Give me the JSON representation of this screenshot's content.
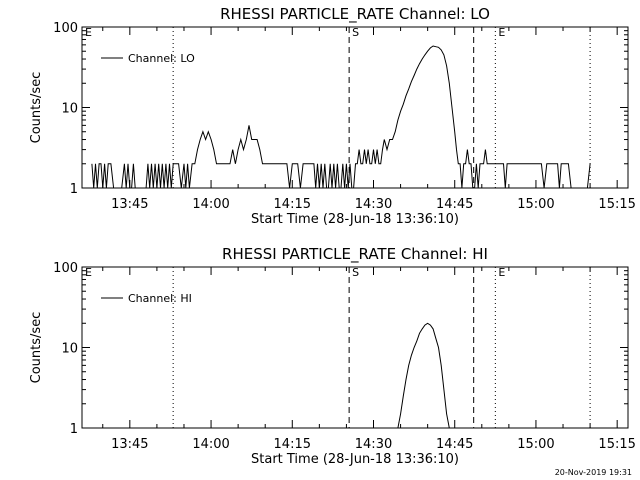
{
  "footer_timestamp": "20-Nov-2019 19:31",
  "chart_data": [
    {
      "type": "line",
      "title": "RHESSI PARTICLE_RATE Channel: LO",
      "xlabel": "Start Time (28-Jun-18 13:36:10)",
      "ylabel": "Counts/sec",
      "y_scale": "log",
      "ylim": [
        1,
        100
      ],
      "xlim": [
        "13:36:10",
        "15:17:00"
      ],
      "y_ticks": [
        "1",
        "10",
        "100"
      ],
      "x_ticks": [
        "13:45",
        "14:00",
        "14:15",
        "14:30",
        "14:45",
        "15:00",
        "15:15"
      ],
      "legend": {
        "position": "top-left",
        "label": "Channel: LO"
      },
      "markers": [
        {
          "label": "E",
          "time": "13:36:10",
          "style": "dotted"
        },
        {
          "label": "",
          "time": "13:53:00",
          "style": "dotted"
        },
        {
          "label": "S",
          "time": "14:25:30",
          "style": "dashed"
        },
        {
          "label": "",
          "time": "14:48:30",
          "style": "dashed"
        },
        {
          "label": "E",
          "time": "14:52:30",
          "style": "dotted"
        },
        {
          "label": "",
          "time": "15:10:00",
          "style": "dotted"
        }
      ],
      "series": [
        {
          "name": "Channel: LO",
          "points": [
            [
              "13:38:00",
              2
            ],
            [
              "13:38:20",
              1
            ],
            [
              "13:38:40",
              2
            ],
            [
              "13:39:00",
              1
            ],
            [
              "13:39:20",
              2
            ],
            [
              "13:39:40",
              2
            ],
            [
              "13:40:00",
              1
            ],
            [
              "13:40:20",
              2
            ],
            [
              "13:40:40",
              1
            ],
            [
              "13:41:00",
              2
            ],
            [
              "13:41:30",
              2
            ],
            [
              "13:42:00",
              1
            ],
            [
              "13:42:30",
              1
            ],
            [
              "13:43:00",
              1
            ],
            [
              "13:43:30",
              1
            ],
            [
              "13:44:00",
              2
            ],
            [
              "13:44:20",
              1
            ],
            [
              "13:44:40",
              2
            ],
            [
              "13:45:00",
              1
            ],
            [
              "13:45:20",
              1
            ],
            [
              "13:45:40",
              2
            ],
            [
              "13:46:00",
              1
            ],
            [
              "13:46:30",
              1
            ],
            [
              "13:47:00",
              1
            ],
            [
              "13:47:30",
              1
            ],
            [
              "13:48:00",
              1
            ],
            [
              "13:48:20",
              2
            ],
            [
              "13:48:40",
              1
            ],
            [
              "13:49:00",
              2
            ],
            [
              "13:49:20",
              1
            ],
            [
              "13:49:40",
              2
            ],
            [
              "13:50:00",
              1
            ],
            [
              "13:50:20",
              2
            ],
            [
              "13:50:40",
              1
            ],
            [
              "13:51:00",
              2
            ],
            [
              "13:51:20",
              1
            ],
            [
              "13:51:40",
              2
            ],
            [
              "13:52:00",
              1
            ],
            [
              "13:52:20",
              2
            ],
            [
              "13:52:40",
              1
            ],
            [
              "13:53:00",
              2
            ],
            [
              "13:53:30",
              2
            ],
            [
              "13:54:00",
              2
            ],
            [
              "13:54:30",
              1
            ],
            [
              "13:55:00",
              2
            ],
            [
              "13:55:20",
              1
            ],
            [
              "13:55:40",
              2
            ],
            [
              "13:56:00",
              1
            ],
            [
              "13:56:30",
              2
            ],
            [
              "13:57:00",
              2
            ],
            [
              "13:57:30",
              3
            ],
            [
              "13:58:00",
              4
            ],
            [
              "13:58:30",
              5
            ],
            [
              "13:59:00",
              4
            ],
            [
              "13:59:30",
              5
            ],
            [
              "14:00:00",
              4
            ],
            [
              "14:00:30",
              3
            ],
            [
              "14:01:00",
              2
            ],
            [
              "14:01:30",
              2
            ],
            [
              "14:02:00",
              2
            ],
            [
              "14:02:30",
              2
            ],
            [
              "14:03:00",
              2
            ],
            [
              "14:03:30",
              2
            ],
            [
              "14:04:00",
              3
            ],
            [
              "14:04:30",
              2
            ],
            [
              "14:05:00",
              3
            ],
            [
              "14:05:30",
              4
            ],
            [
              "14:06:00",
              3
            ],
            [
              "14:06:30",
              4
            ],
            [
              "14:07:00",
              6
            ],
            [
              "14:07:30",
              4
            ],
            [
              "14:08:00",
              4
            ],
            [
              "14:08:30",
              4
            ],
            [
              "14:09:00",
              3
            ],
            [
              "14:09:30",
              2
            ],
            [
              "14:10:00",
              2
            ],
            [
              "14:11:00",
              2
            ],
            [
              "14:12:00",
              2
            ],
            [
              "14:13:00",
              2
            ],
            [
              "14:14:00",
              2
            ],
            [
              "14:14:30",
              1
            ],
            [
              "14:15:00",
              2
            ],
            [
              "14:16:00",
              2
            ],
            [
              "14:16:30",
              1
            ],
            [
              "14:17:00",
              2
            ],
            [
              "14:18:00",
              2
            ],
            [
              "14:19:00",
              2
            ],
            [
              "14:19:20",
              1
            ],
            [
              "14:19:40",
              2
            ],
            [
              "14:20:00",
              1
            ],
            [
              "14:20:20",
              2
            ],
            [
              "14:20:40",
              1
            ],
            [
              "14:21:00",
              2
            ],
            [
              "14:21:20",
              1
            ],
            [
              "14:21:40",
              1
            ],
            [
              "14:22:00",
              2
            ],
            [
              "14:22:20",
              1
            ],
            [
              "14:22:40",
              2
            ],
            [
              "14:23:00",
              1
            ],
            [
              "14:23:20",
              2
            ],
            [
              "14:23:40",
              1
            ],
            [
              "14:24:00",
              1
            ],
            [
              "14:24:20",
              2
            ],
            [
              "14:24:40",
              1
            ],
            [
              "14:25:00",
              2
            ],
            [
              "14:25:20",
              1
            ],
            [
              "14:25:40",
              2
            ],
            [
              "14:26:00",
              1
            ],
            [
              "14:26:20",
              1
            ],
            [
              "14:26:40",
              2
            ],
            [
              "14:27:00",
              2
            ],
            [
              "14:27:20",
              3
            ],
            [
              "14:27:40",
              2
            ],
            [
              "14:28:00",
              2
            ],
            [
              "14:28:20",
              3
            ],
            [
              "14:28:40",
              2
            ],
            [
              "14:29:00",
              3
            ],
            [
              "14:29:20",
              2
            ],
            [
              "14:29:40",
              2
            ],
            [
              "14:30:00",
              3
            ],
            [
              "14:30:20",
              2
            ],
            [
              "14:30:40",
              3
            ],
            [
              "14:31:00",
              2
            ],
            [
              "14:31:20",
              2
            ],
            [
              "14:31:40",
              3
            ],
            [
              "14:32:00",
              4
            ],
            [
              "14:32:30",
              3
            ],
            [
              "14:33:00",
              4
            ],
            [
              "14:33:30",
              4
            ],
            [
              "14:34:00",
              5
            ],
            [
              "14:34:30",
              7
            ],
            [
              "14:35:00",
              9
            ],
            [
              "14:35:30",
              11
            ],
            [
              "14:36:00",
              14
            ],
            [
              "14:36:30",
              17
            ],
            [
              "14:37:00",
              21
            ],
            [
              "14:37:30",
              25
            ],
            [
              "14:38:00",
              30
            ],
            [
              "14:38:30",
              35
            ],
            [
              "14:39:00",
              40
            ],
            [
              "14:39:30",
              45
            ],
            [
              "14:40:00",
              50
            ],
            [
              "14:40:30",
              55
            ],
            [
              "14:41:00",
              58
            ],
            [
              "14:41:30",
              57
            ],
            [
              "14:42:00",
              56
            ],
            [
              "14:42:30",
              52
            ],
            [
              "14:43:00",
              45
            ],
            [
              "14:43:30",
              33
            ],
            [
              "14:44:00",
              20
            ],
            [
              "14:44:30",
              10
            ],
            [
              "14:45:00",
              5
            ],
            [
              "14:45:20",
              3
            ],
            [
              "14:45:40",
              2
            ],
            [
              "14:46:00",
              2
            ],
            [
              "14:46:20",
              1
            ],
            [
              "14:46:40",
              2
            ],
            [
              "14:47:00",
              2
            ],
            [
              "14:47:20",
              3
            ],
            [
              "14:47:40",
              2
            ],
            [
              "14:48:00",
              2
            ],
            [
              "14:48:20",
              1
            ],
            [
              "14:48:40",
              1
            ],
            [
              "14:49:00",
              2
            ],
            [
              "14:49:20",
              1
            ],
            [
              "14:49:40",
              2
            ],
            [
              "14:50:00",
              2
            ],
            [
              "14:50:20",
              2
            ],
            [
              "14:50:40",
              3
            ],
            [
              "14:51:00",
              2
            ],
            [
              "14:51:30",
              2
            ],
            [
              "14:52:00",
              2
            ],
            [
              "14:52:30",
              2
            ],
            [
              "14:53:00",
              2
            ],
            [
              "14:53:30",
              2
            ],
            [
              "14:54:00",
              2
            ],
            [
              "14:54:20",
              1
            ],
            [
              "14:54:40",
              2
            ],
            [
              "14:55:00",
              2
            ],
            [
              "14:56:00",
              2
            ],
            [
              "14:57:00",
              2
            ],
            [
              "14:58:00",
              2
            ],
            [
              "14:59:00",
              2
            ],
            [
              "15:00:00",
              2
            ],
            [
              "15:01:00",
              2
            ],
            [
              "15:01:30",
              1
            ],
            [
              "15:02:00",
              2
            ],
            [
              "15:03:00",
              2
            ],
            [
              "15:04:00",
              2
            ],
            [
              "15:04:20",
              1
            ],
            [
              "15:04:40",
              2
            ],
            [
              "15:05:00",
              2
            ],
            [
              "15:06:00",
              2
            ],
            [
              "15:06:30",
              1
            ],
            [
              "15:07:00",
              1
            ],
            [
              "15:07:30",
              1
            ],
            [
              "15:08:00",
              1
            ],
            [
              "15:08:30",
              1
            ],
            [
              "15:09:00",
              1
            ],
            [
              "15:09:30",
              1
            ],
            [
              "15:10:00",
              2
            ]
          ]
        }
      ]
    },
    {
      "type": "line",
      "title": "RHESSI PARTICLE_RATE Channel: HI",
      "xlabel": "Start Time (28-Jun-18 13:36:10)",
      "ylabel": "Counts/sec",
      "y_scale": "log",
      "ylim": [
        1,
        100
      ],
      "xlim": [
        "13:36:10",
        "15:17:00"
      ],
      "y_ticks": [
        "1",
        "10",
        "100"
      ],
      "x_ticks": [
        "13:45",
        "14:00",
        "14:15",
        "14:30",
        "14:45",
        "15:00",
        "15:15"
      ],
      "legend": {
        "position": "top-left",
        "label": "Channel: HI"
      },
      "markers": [
        {
          "label": "E",
          "time": "13:36:10",
          "style": "dotted"
        },
        {
          "label": "",
          "time": "13:53:00",
          "style": "dotted"
        },
        {
          "label": "S",
          "time": "14:25:30",
          "style": "dashed"
        },
        {
          "label": "",
          "time": "14:48:30",
          "style": "dashed"
        },
        {
          "label": "E",
          "time": "14:52:30",
          "style": "dotted"
        },
        {
          "label": "",
          "time": "15:10:00",
          "style": "dotted"
        }
      ],
      "series": [
        {
          "name": "Channel: HI",
          "points": [
            [
              "14:34:30",
              1
            ],
            [
              "14:35:00",
              1.5
            ],
            [
              "14:35:30",
              2.5
            ],
            [
              "14:36:00",
              4
            ],
            [
              "14:36:30",
              6
            ],
            [
              "14:37:00",
              8
            ],
            [
              "14:37:30",
              10
            ],
            [
              "14:38:00",
              12
            ],
            [
              "14:38:30",
              15
            ],
            [
              "14:39:00",
              17
            ],
            [
              "14:39:30",
              19
            ],
            [
              "14:40:00",
              20
            ],
            [
              "14:40:30",
              19
            ],
            [
              "14:41:00",
              17
            ],
            [
              "14:41:30",
              13
            ],
            [
              "14:42:00",
              10
            ],
            [
              "14:42:30",
              6
            ],
            [
              "14:43:00",
              3
            ],
            [
              "14:43:30",
              1.5
            ],
            [
              "14:44:00",
              1
            ]
          ]
        }
      ]
    }
  ]
}
